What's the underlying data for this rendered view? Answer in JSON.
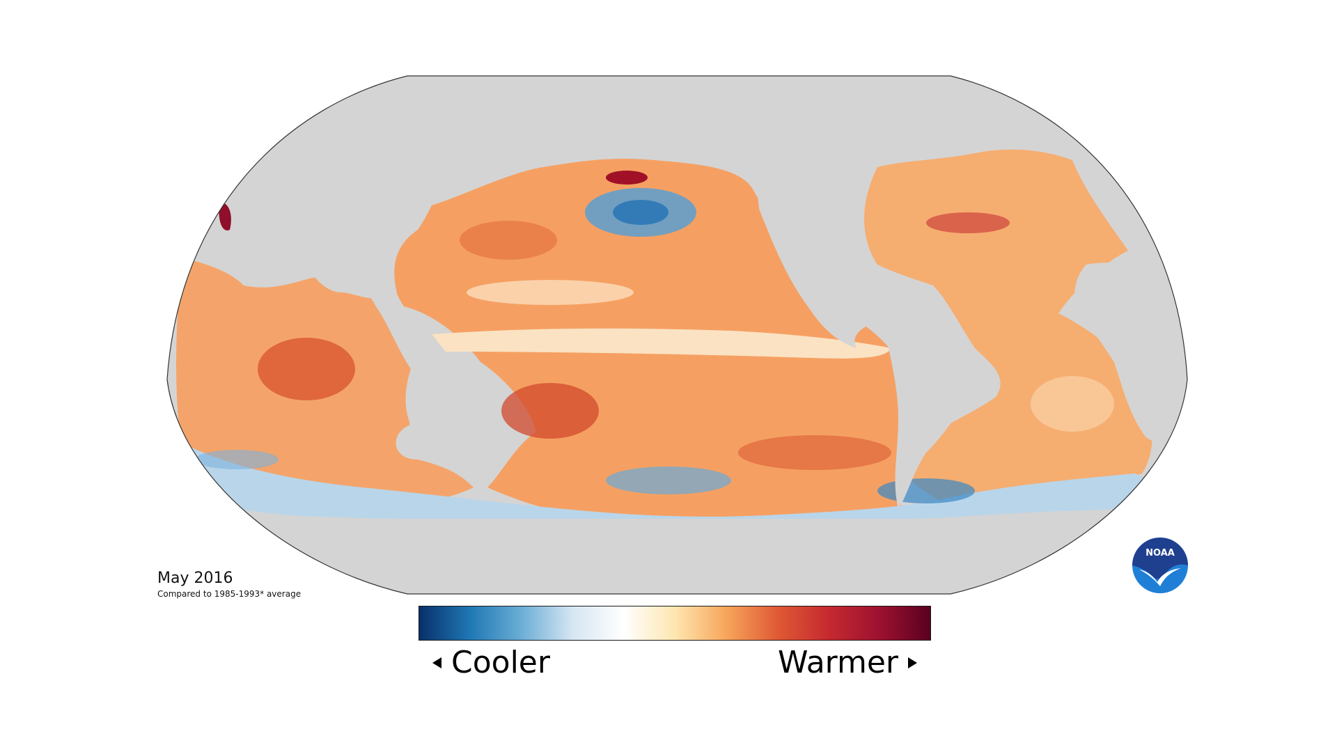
{
  "caption": {
    "title": "May 2016",
    "subtitle": "Compared to 1985-1993* average"
  },
  "legend": {
    "low_label": "Cooler",
    "high_label": "Warmer",
    "colors": [
      "#08306b",
      "#1f78b4",
      "#6baed6",
      "#d6e6f2",
      "#ffffff",
      "#fee6b0",
      "#f7a65c",
      "#e05a35",
      "#c62a2f",
      "#9e1130",
      "#5a0020"
    ]
  },
  "logo": {
    "text": "NOAA",
    "colors": {
      "outer": "#ffffff",
      "top": "#1f3f8f",
      "bottom": "#1f7fd6"
    }
  },
  "map": {
    "land_color": "#d4d4d4",
    "outline_color": "#333333"
  }
}
